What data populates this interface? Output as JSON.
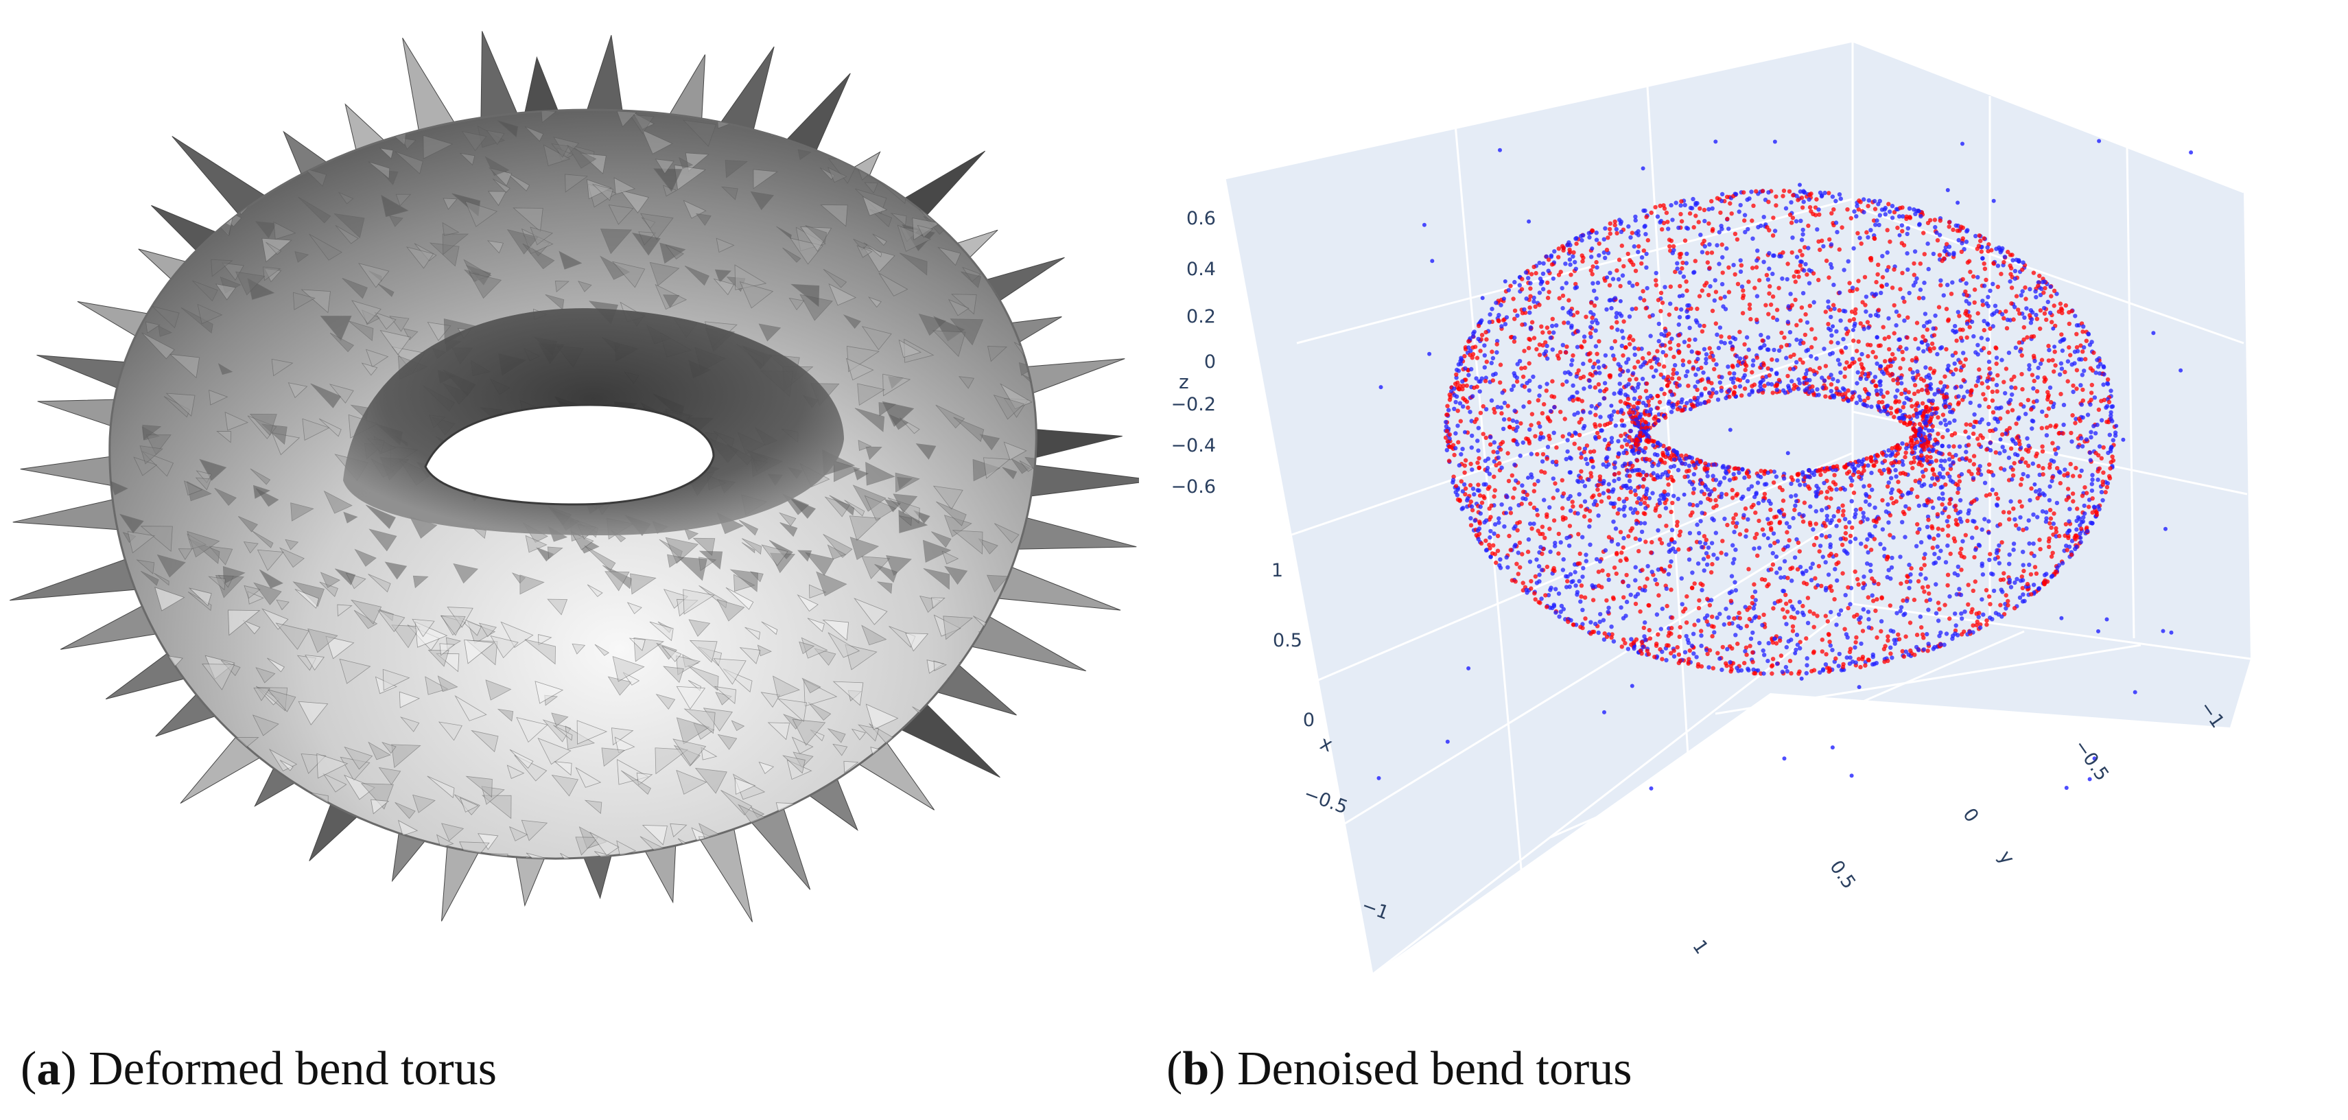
{
  "panel_a": {
    "label": "a",
    "caption": "Deformed bend torus"
  },
  "panel_b": {
    "label": "b",
    "caption": "Denoised bend torus",
    "chart_data": {
      "type": "scatter",
      "z_axis": {
        "title": "z",
        "ticks": [
          "0.6",
          "0.4",
          "0.2",
          "0",
          "−0.2",
          "−0.4",
          "−0.6"
        ]
      },
      "x_axis": {
        "title": "x",
        "ticks": [
          "1",
          "0.5",
          "0",
          "−0.5",
          "−1"
        ]
      },
      "y_axis": {
        "title": "y",
        "ticks": [
          "−1",
          "−0.5",
          "0",
          "0.5",
          "1"
        ]
      },
      "series_colors": [
        "#ff0000",
        "#2020ff"
      ],
      "background": "#e5ecf6"
    }
  }
}
